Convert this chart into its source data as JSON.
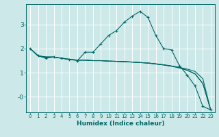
{
  "xlabel": "Humidex (Indice chaleur)",
  "bg_color": "#cce8e8",
  "line_color": "#006666",
  "grid_color": "#ffffff",
  "xlim": [
    -0.5,
    23.5
  ],
  "ylim": [
    -0.65,
    3.85
  ],
  "yticks": [
    0,
    1,
    2,
    3
  ],
  "ytick_labels": [
    "-0",
    "1",
    "2",
    "3"
  ],
  "xticks": [
    0,
    1,
    2,
    3,
    4,
    5,
    6,
    7,
    8,
    9,
    10,
    11,
    12,
    13,
    14,
    15,
    16,
    17,
    18,
    19,
    20,
    21,
    22,
    23
  ],
  "series": [
    {
      "x": [
        0,
        1,
        2,
        3,
        4,
        5,
        6,
        7,
        8,
        9,
        10,
        11,
        12,
        13,
        14,
        15,
        16,
        17,
        18,
        19,
        20,
        21,
        22,
        23
      ],
      "y": [
        2.0,
        1.7,
        1.6,
        1.65,
        1.6,
        1.55,
        1.5,
        1.85,
        1.85,
        2.2,
        2.55,
        2.75,
        3.1,
        3.35,
        3.55,
        3.3,
        2.55,
        2.0,
        1.95,
        1.3,
        0.9,
        0.45,
        -0.4,
        -0.55
      ],
      "marker": true
    },
    {
      "x": [
        0,
        1,
        2,
        3,
        4,
        5,
        6,
        7,
        8,
        9,
        10,
        11,
        12,
        13,
        14,
        15,
        16,
        17,
        18,
        19,
        20,
        21,
        22,
        23
      ],
      "y": [
        2.0,
        1.7,
        1.65,
        1.65,
        1.6,
        1.55,
        1.52,
        1.52,
        1.5,
        1.5,
        1.48,
        1.47,
        1.45,
        1.44,
        1.42,
        1.4,
        1.37,
        1.33,
        1.28,
        1.22,
        1.15,
        1.05,
        0.75,
        -0.55
      ],
      "marker": false
    },
    {
      "x": [
        0,
        1,
        2,
        3,
        4,
        5,
        6,
        7,
        8,
        9,
        10,
        11,
        12,
        13,
        14,
        15,
        16,
        17,
        18,
        19,
        20,
        21,
        22,
        23
      ],
      "y": [
        2.0,
        1.7,
        1.65,
        1.65,
        1.6,
        1.55,
        1.52,
        1.52,
        1.5,
        1.5,
        1.48,
        1.47,
        1.46,
        1.44,
        1.42,
        1.4,
        1.36,
        1.32,
        1.27,
        1.2,
        1.1,
        0.95,
        0.55,
        -0.55
      ],
      "marker": false
    },
    {
      "x": [
        0,
        1,
        2,
        3,
        4,
        5,
        6,
        7,
        8,
        9,
        10,
        11,
        12,
        13,
        14,
        15,
        16,
        17,
        18,
        19,
        20,
        21,
        22,
        23
      ],
      "y": [
        2.0,
        1.7,
        1.65,
        1.65,
        1.6,
        1.56,
        1.52,
        1.52,
        1.5,
        1.5,
        1.48,
        1.47,
        1.46,
        1.44,
        1.42,
        1.4,
        1.36,
        1.32,
        1.27,
        1.2,
        1.1,
        0.95,
        0.55,
        -0.55
      ],
      "marker": false
    }
  ]
}
